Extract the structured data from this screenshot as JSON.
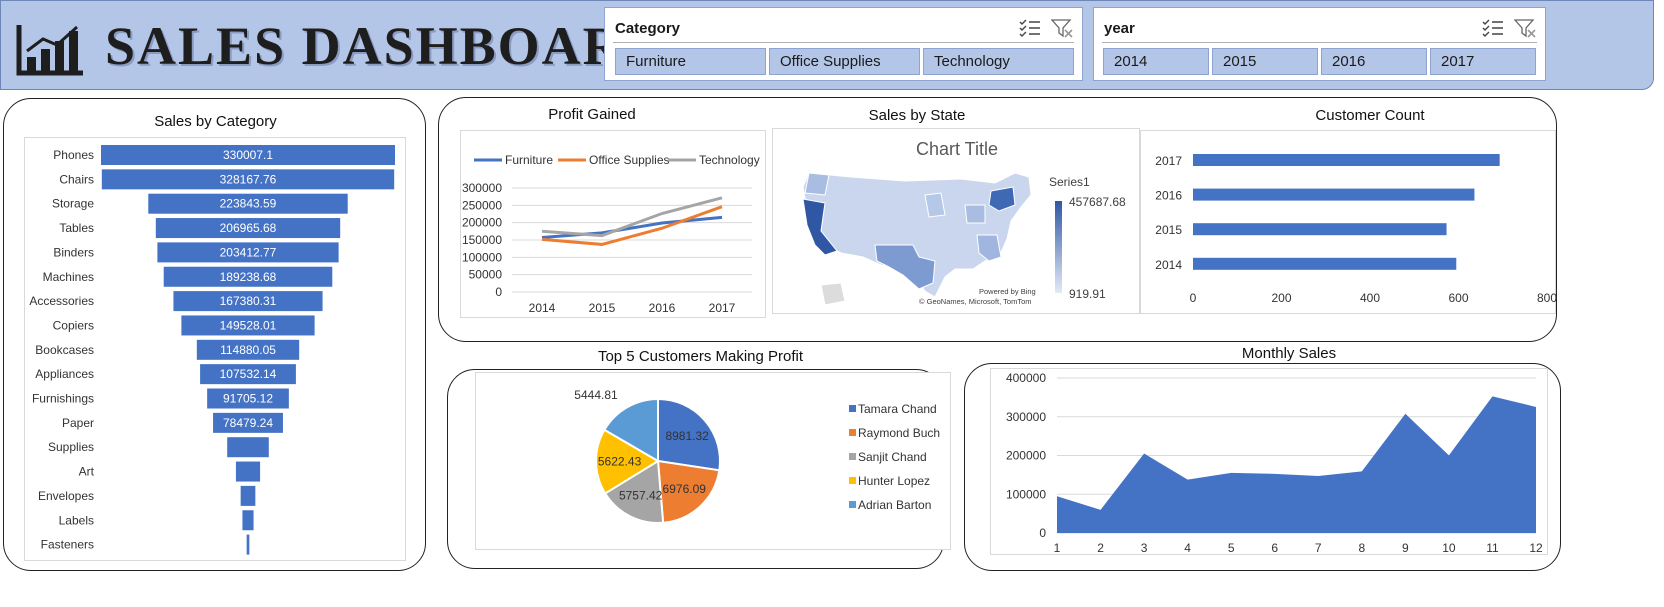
{
  "header": {
    "title": "SALES DASHBOARD",
    "logo_icon": "bar-chart-icon",
    "colors": {
      "band": "#b4c6e7",
      "accent": "#4472c4"
    }
  },
  "slicers": {
    "category": {
      "title": "Category",
      "items": [
        "Furniture",
        "Office Supplies",
        "Technology"
      ],
      "icons": [
        "multi-select-icon",
        "clear-filter-icon"
      ]
    },
    "year": {
      "title": "year",
      "items": [
        "2014",
        "2015",
        "2016",
        "2017"
      ],
      "icons": [
        "multi-select-icon",
        "clear-filter-icon"
      ]
    }
  },
  "charts": {
    "sales_by_category": {
      "title": "Sales by Category"
    },
    "profit_gained": {
      "title": "Profit Gained"
    },
    "sales_by_state": {
      "title": "Sales by State",
      "inner_title": "Chart Title",
      "legend_series": "Series1",
      "legend_max": "457687.68",
      "legend_min": "919.91",
      "credit1": "Powered by Bing",
      "credit2": "© GeoNames, Microsoft, TomTom"
    },
    "customer_count": {
      "title": "Customer Count"
    },
    "top5": {
      "title": "Top 5 Customers Making Profit"
    },
    "monthly_sales": {
      "title": "Monthly Sales"
    }
  },
  "chart_data": [
    {
      "id": "sales_by_category",
      "type": "bar",
      "orientation": "horizontal-funnel",
      "categories": [
        "Phones",
        "Chairs",
        "Storage",
        "Tables",
        "Binders",
        "Machines",
        "Accessories",
        "Copiers",
        "Bookcases",
        "Appliances",
        "Furnishings",
        "Paper",
        "Supplies",
        "Art",
        "Envelopes",
        "Labels",
        "Fasteners"
      ],
      "values": [
        330007.1,
        328167.76,
        223843.59,
        206965.68,
        203412.77,
        189238.68,
        167380.31,
        149528.01,
        114880.05,
        107532.14,
        91705.12,
        78479.24,
        46673.54,
        27118.79,
        16476.4,
        12486.31,
        3024.28
      ],
      "labels": [
        "330007.1",
        "328167.76",
        "223843.59",
        "206965.68",
        "203412.77",
        "189238.68",
        "167380.31",
        "149528.01",
        "114880.05",
        "107532.14",
        "91705.12",
        "78479.24",
        "",
        "",
        "",
        "",
        ""
      ],
      "color": "#4472c4"
    },
    {
      "id": "profit_gained",
      "type": "line",
      "x": [
        "2014",
        "2015",
        "2016",
        "2017"
      ],
      "series": [
        {
          "name": "Furniture",
          "values": [
            157193,
            170518,
            198901,
            215387
          ],
          "color": "#4472c4"
        },
        {
          "name": "Office Supplies",
          "values": [
            151776,
            137233,
            183939,
            246097
          ],
          "color": "#ed7d31"
        },
        {
          "name": "Technology",
          "values": [
            175278,
            162780,
            226364,
            271731
          ],
          "color": "#a5a5a5"
        }
      ],
      "yticks": [
        "300000",
        "250000",
        "200000",
        "150000",
        "100000",
        "50000",
        "0"
      ],
      "ylim": [
        0,
        300000
      ],
      "legend": "top",
      "grid": true
    },
    {
      "id": "customer_count",
      "type": "bar",
      "orientation": "horizontal",
      "categories": [
        "2017",
        "2016",
        "2015",
        "2014"
      ],
      "values": [
        693,
        636,
        573,
        595
      ],
      "xticks": [
        "0",
        "200",
        "400",
        "600",
        "800"
      ],
      "xlim": [
        0,
        800
      ],
      "color": "#4472c4"
    },
    {
      "id": "top5",
      "type": "pie",
      "labels": [
        "Tamara Chand",
        "Raymond Buch",
        "Sanjit Chand",
        "Hunter Lopez",
        "Adrian Barton"
      ],
      "values": [
        8981.32,
        6976.09,
        5757.42,
        5622.43,
        5444.81
      ],
      "value_labels": [
        "8981.32",
        "6976.09",
        "5757.42",
        "5622.43",
        "5444.81"
      ],
      "colors": [
        "#4472c4",
        "#ed7d31",
        "#a5a5a5",
        "#ffc000",
        "#5b9bd5"
      ],
      "legend": "right"
    },
    {
      "id": "monthly_sales",
      "type": "area",
      "x": [
        "1",
        "2",
        "3",
        "4",
        "5",
        "6",
        "7",
        "8",
        "9",
        "10",
        "11",
        "12"
      ],
      "values": [
        94925,
        59751,
        205005,
        137762,
        155028,
        152718,
        147238,
        159044,
        307650,
        200323,
        352461,
        325294
      ],
      "yticks": [
        "400000",
        "300000",
        "200000",
        "100000",
        "0"
      ],
      "ylim": [
        0,
        400000
      ],
      "color": "#4472c4",
      "grid": true
    }
  ]
}
